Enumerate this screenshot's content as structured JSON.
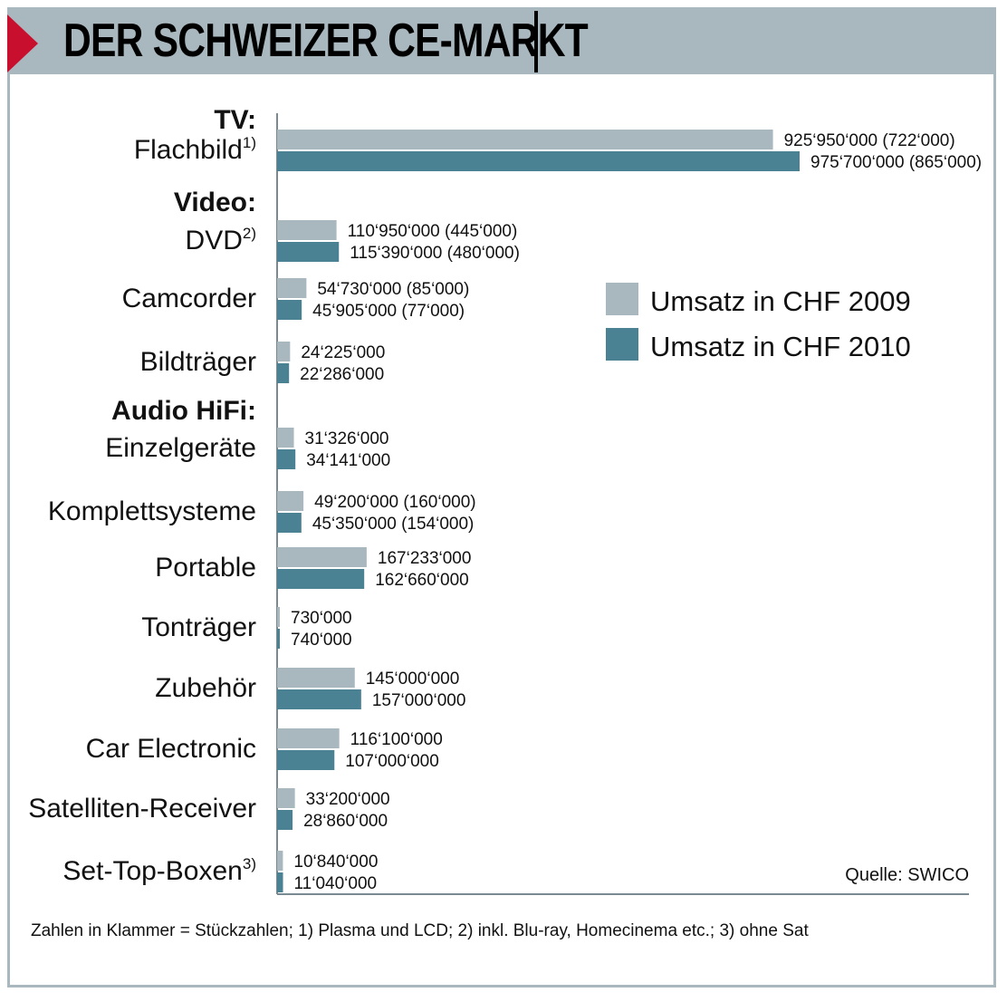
{
  "header": {
    "title": "DER SCHWEIZER CE-MARKT"
  },
  "colors": {
    "series_2009": "#a9b7bf",
    "series_2010": "#4a8294",
    "accent": "#c8102e",
    "frame": "#a9b7bf"
  },
  "source": "Quelle: SWICO",
  "footnote": "Zahlen in Klammer = Stückzahlen; 1) Plasma und LCD; 2) inkl. Blu-ray, Homecinema etc.; 3) ohne Sat",
  "chart_data": {
    "type": "bar",
    "orientation": "horizontal",
    "legend_placement": "right",
    "grid": false,
    "groups": [
      "TV:",
      "Video:",
      "Audio HiFi:"
    ],
    "categories": [
      {
        "group": 0,
        "label": "Flachbild",
        "sup": "1)"
      },
      {
        "group": 1,
        "label": "DVD",
        "sup": "2)"
      },
      {
        "group": 1,
        "label": "Camcorder",
        "sup": ""
      },
      {
        "group": 1,
        "label": "Bildträger",
        "sup": ""
      },
      {
        "group": 2,
        "label": "Einzelgeräte",
        "sup": ""
      },
      {
        "group": 2,
        "label": "Komplettsysteme",
        "sup": ""
      },
      {
        "group": 2,
        "label": "Portable",
        "sup": ""
      },
      {
        "group": 2,
        "label": "Tonträger",
        "sup": ""
      },
      {
        "group": 2,
        "label": "Zubehör",
        "sup": ""
      },
      {
        "group": 2,
        "label": "Car Electronic",
        "sup": ""
      },
      {
        "group": 2,
        "label": "Satelliten-Receiver",
        "sup": ""
      },
      {
        "group": 2,
        "label": "Set-Top-Boxen",
        "sup": "3)"
      }
    ],
    "series": [
      {
        "name": "Umsatz in CHF 2009",
        "values": [
          925950000,
          110950000,
          54730000,
          24225000,
          31326000,
          49200000,
          167233000,
          730000,
          145000000,
          116100000,
          33200000,
          10840000
        ],
        "labels": [
          "925‘950‘000 (722‘000)",
          "110‘950‘000 (445‘000)",
          "54‘730‘000 (85‘000)",
          "24‘225‘000",
          "31‘326‘000",
          "49‘200‘000 (160‘000)",
          "167‘233‘000",
          "730‘000",
          "145‘000‘000",
          "116‘100‘000",
          "33‘200‘000",
          "10‘840‘000"
        ]
      },
      {
        "name": "Umsatz in CHF 2010",
        "values": [
          975700000,
          115390000,
          45905000,
          22286000,
          34141000,
          45350000,
          162660000,
          740000,
          157000000,
          107000000,
          28860000,
          11040000
        ],
        "labels": [
          "975‘700‘000 (865‘000)",
          "115‘390‘000 (480‘000)",
          "45‘905‘000 (77‘000)",
          "22‘286‘000",
          "34‘141‘000",
          "45‘350‘000 (154‘000)",
          "162‘660‘000",
          "740‘000",
          "157‘000‘000",
          "107‘000‘000",
          "28‘860‘000",
          "11‘040‘000"
        ]
      }
    ]
  }
}
